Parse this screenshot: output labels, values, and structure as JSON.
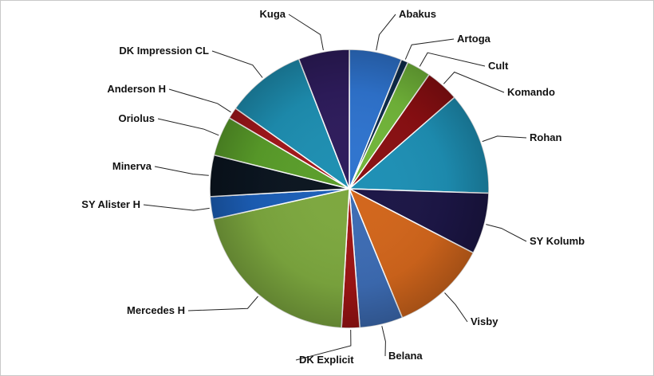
{
  "chart_data": {
    "type": "pie",
    "labels": [
      "Abakus",
      "Artoga",
      "Cult",
      "Komando",
      "Rohan",
      "SY Kolumb",
      "Visby",
      "Belana",
      "DK Explicit",
      "Mercedes H",
      "SY Alister H",
      "Minerva",
      "Oriolus",
      "Anderson H",
      "DK Impression CL",
      "Kuga"
    ],
    "display_labels": [
      "Abakus",
      "Artoga",
      "Cult",
      "Komando",
      "Rohan",
      "SY Kolumb",
      "Visby",
      "Belana",
      "DK Explicit",
      "Mercedes H",
      "SY Alister H",
      "Minerva",
      "Oriolus",
      "Anderson H",
      "DK Impression CL",
      "Kuga"
    ],
    "values": [
      6.1,
      0.8,
      2.8,
      3.9,
      11.9,
      7.1,
      11.2,
      5.0,
      2.1,
      20.6,
      2.6,
      4.8,
      4.6,
      1.3,
      9.3,
      5.9
    ],
    "colors": [
      "#2f74cf",
      "#0e2d4d",
      "#72b63a",
      "#8a0f12",
      "#1e90b5",
      "#1c1646",
      "#d2661c",
      "#3d6cb4",
      "#9e1414",
      "#7da83f",
      "#1c5fb8",
      "#0b1520",
      "#5a9e2a",
      "#a3171b",
      "#1e8fb2",
      "#2e1c5c"
    ]
  }
}
